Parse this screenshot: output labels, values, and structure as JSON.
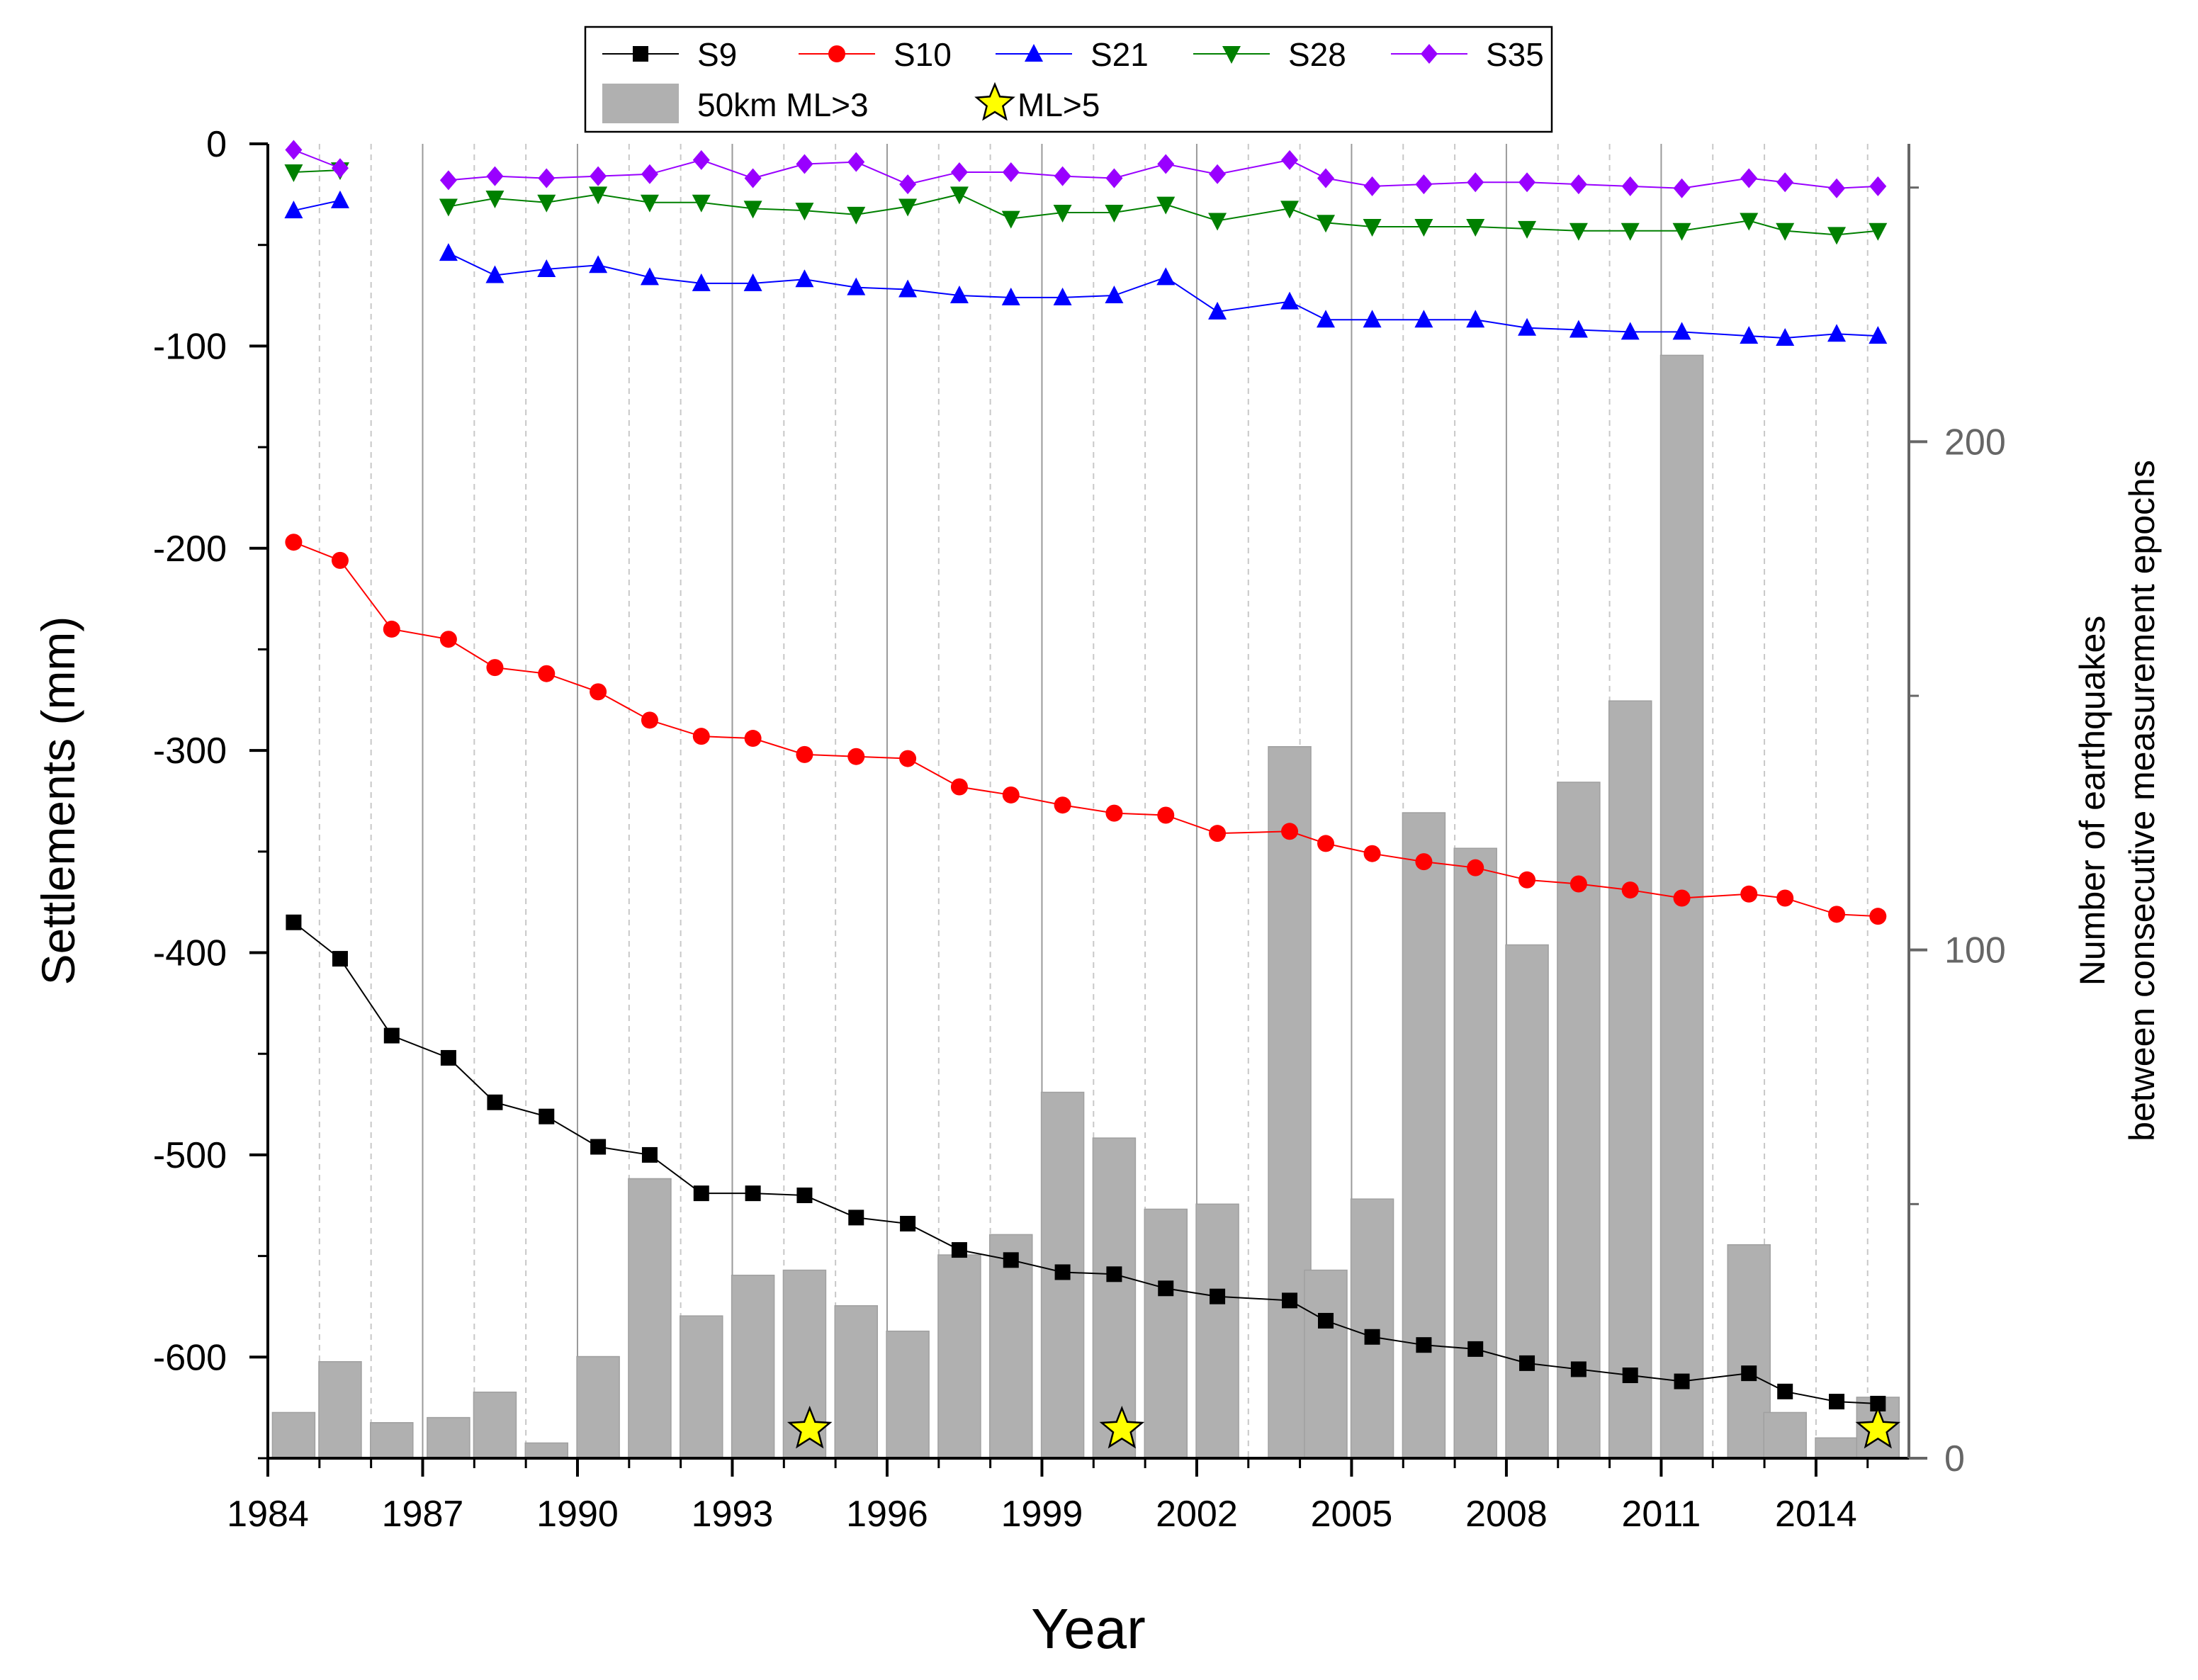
{
  "chart_data": {
    "type": "line",
    "xlabel": "Year",
    "ylabel": "Settlements (mm)",
    "y2label": [
      "Number of earthquakes",
      "between consecutive measurement epochs"
    ],
    "xlim": [
      1984,
      2015.8
    ],
    "ylim": [
      -650,
      0
    ],
    "y2lim": [
      0,
      254
    ],
    "xticks": [
      "1984",
      "1987",
      "1990",
      "1993",
      "1996",
      "1999",
      "2002",
      "2005",
      "2008",
      "2011",
      "2014"
    ],
    "yticks": [
      "0",
      "-100",
      "-200",
      "-300",
      "-400",
      "-500",
      "-600"
    ],
    "y2ticks": [
      "0",
      "100",
      "200"
    ],
    "series": [
      {
        "name": "S9",
        "color": "#000000",
        "marker": "square",
        "x": [
          1984.5,
          1985.4,
          1986.4,
          1987.5,
          1988.4,
          1989.4,
          1990.4,
          1991.4,
          1992.4,
          1993.4,
          1994.4,
          1995.4,
          1996.4,
          1997.4,
          1998.4,
          1999.4,
          2000.4,
          2001.4,
          2002.4,
          2003.8,
          2004.5,
          2005.4,
          2006.4,
          2007.4,
          2008.4,
          2009.4,
          2010.4,
          2011.4,
          2012.7,
          2013.4,
          2014.4,
          2015.2
        ],
        "values": [
          -385,
          -403,
          -441,
          -452,
          -474,
          -481,
          -496,
          -500,
          -519,
          -519,
          -520,
          -531,
          -534,
          -547,
          -552,
          -558,
          -559,
          -566,
          -570,
          -572,
          -582,
          -590,
          -594,
          -596,
          -603,
          -606,
          -609,
          -612,
          -608,
          -617,
          -622,
          -623
        ]
      },
      {
        "name": "S10",
        "color": "#ff0000",
        "marker": "circle",
        "x": [
          1984.5,
          1985.4,
          1986.4,
          1987.5,
          1988.4,
          1989.4,
          1990.4,
          1991.4,
          1992.4,
          1993.4,
          1994.4,
          1995.4,
          1996.4,
          1997.4,
          1998.4,
          1999.4,
          2000.4,
          2001.4,
          2002.4,
          2003.8,
          2004.5,
          2005.4,
          2006.4,
          2007.4,
          2008.4,
          2009.4,
          2010.4,
          2011.4,
          2012.7,
          2013.4,
          2014.4,
          2015.2
        ],
        "values": [
          -197,
          -206,
          -240,
          -245,
          -259,
          -262,
          -271,
          -285,
          -293,
          -294,
          -302,
          -303,
          -304,
          -318,
          -322,
          -327,
          -331,
          -332,
          -341,
          -340,
          -346,
          -351,
          -355,
          -358,
          -364,
          -366,
          -369,
          -373,
          -371,
          -373,
          -381,
          -382
        ]
      },
      {
        "name": "S21",
        "color": "#0000ff",
        "marker": "triangle-up",
        "x": [
          1984.5,
          1985.4,
          null,
          1987.5,
          1988.4,
          1989.4,
          1990.4,
          1991.4,
          1992.4,
          1993.4,
          1994.4,
          1995.4,
          1996.4,
          1997.4,
          1998.4,
          1999.4,
          2000.4,
          2001.4,
          2002.4,
          2003.8,
          2004.5,
          2005.4,
          2006.4,
          2007.4,
          2008.4,
          2009.4,
          2010.4,
          2011.4,
          2012.7,
          2013.4,
          2014.4,
          2015.2
        ],
        "values": [
          -33,
          -28,
          null,
          -54,
          -65,
          -62,
          -60,
          -66,
          -69,
          -69,
          -67,
          -71,
          -72,
          -75,
          -76,
          -76,
          -75,
          -66,
          -83,
          -78,
          -87,
          -87,
          -87,
          -87,
          -91,
          -92,
          -93,
          -93,
          -95,
          -96,
          -94,
          -95
        ]
      },
      {
        "name": "S28",
        "color": "#008000",
        "marker": "triangle-down",
        "x": [
          1984.5,
          1985.4,
          null,
          1987.5,
          1988.4,
          1989.4,
          1990.4,
          1991.4,
          1992.4,
          1993.4,
          1994.4,
          1995.4,
          1996.4,
          1997.4,
          1998.4,
          1999.4,
          2000.4,
          2001.4,
          2002.4,
          2003.8,
          2004.5,
          2005.4,
          2006.4,
          2007.4,
          2008.4,
          2009.4,
          2010.4,
          2011.4,
          2012.7,
          2013.4,
          2014.4,
          2015.2
        ],
        "values": [
          -14,
          -13,
          null,
          -31,
          -27,
          -29,
          -25,
          -29,
          -29,
          -32,
          -33,
          -35,
          -31,
          -25,
          -37,
          -34,
          -34,
          -30,
          -38,
          -32,
          -39,
          -41,
          -41,
          -41,
          -42,
          -43,
          -43,
          -43,
          -38,
          -43,
          -45,
          -43
        ]
      },
      {
        "name": "S35",
        "color": "#9900ff",
        "marker": "diamond",
        "x": [
          1984.5,
          1985.4,
          null,
          1987.5,
          1988.4,
          1989.4,
          1990.4,
          1991.4,
          1992.4,
          1993.4,
          1994.4,
          1995.4,
          1996.4,
          1997.4,
          1998.4,
          1999.4,
          2000.4,
          2001.4,
          2002.4,
          2003.8,
          2004.5,
          2005.4,
          2006.4,
          2007.4,
          2008.4,
          2009.4,
          2010.4,
          2011.4,
          2012.7,
          2013.4,
          2014.4,
          2015.2
        ],
        "values": [
          -3,
          -12,
          null,
          -18,
          -16,
          -17,
          -16,
          -15,
          -8,
          -17,
          -10,
          -9,
          -20,
          -14,
          -14,
          -16,
          -17,
          -10,
          -15,
          -8,
          -17,
          -21,
          -20,
          -19,
          -19,
          -20,
          -21,
          -22,
          -17,
          -19,
          -22,
          -21
        ]
      }
    ],
    "bars": {
      "name": "50km ML>3",
      "color": "#b0b0b0",
      "axis": "right",
      "x": [
        1984.5,
        1985.4,
        1986.4,
        1987.5,
        1988.4,
        1989.4,
        1990.4,
        1991.4,
        1992.4,
        1993.4,
        1994.4,
        1995.4,
        1996.4,
        1997.4,
        1998.4,
        1999.4,
        2000.4,
        2001.4,
        2002.4,
        2003.8,
        2004.5,
        2005.4,
        2006.4,
        2007.4,
        2008.4,
        2009.4,
        2010.4,
        2011.4,
        2012.7,
        2013.4,
        2014.4,
        2015.2
      ],
      "values": [
        9,
        19,
        7,
        8,
        13,
        3,
        20,
        55,
        28,
        36,
        37,
        30,
        25,
        40,
        44,
        72,
        63,
        49,
        50,
        140,
        37,
        51,
        127,
        120,
        101,
        133,
        149,
        217,
        42,
        9,
        4,
        12
      ]
    },
    "stars": {
      "name": "ML>5",
      "color": "#ffff00",
      "axis": "right",
      "x": [
        1994.5,
        2000.55,
        2015.2
      ],
      "values": [
        4,
        4,
        4
      ]
    },
    "verticals": {
      "solid": [
        1987,
        1990,
        1993,
        1996,
        1999,
        2002,
        2005,
        2008,
        2011
      ],
      "dashed": [
        1985,
        1986,
        1988,
        1989,
        1991,
        1992,
        1994,
        1995,
        1997,
        1998,
        2000,
        2001,
        2003,
        2004,
        2006,
        2007,
        2009,
        2010,
        2012,
        2013,
        2014,
        2015
      ]
    },
    "legend": {
      "placement": "top-center",
      "line_entries": [
        "S9",
        "S10",
        "S21",
        "S28",
        "S35"
      ],
      "bar_entry": "50km ML>3",
      "star_entry": "ML>5"
    }
  }
}
